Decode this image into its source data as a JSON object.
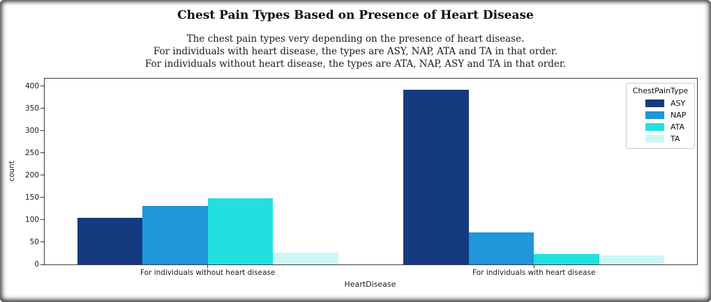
{
  "figure": {
    "title": "Chest Pain Types Based on Presence of Heart Disease",
    "subtitle_lines": [
      "The chest pain types very depending on the presence of heart disease.",
      "For individuals with heart disease, the types are ASY, NAP, ATA and TA in that order.",
      "For individuals without heart disease, the types are ATA, NAP, ASY and TA in that order."
    ]
  },
  "chart_data": {
    "type": "bar",
    "title": "Chest Pain Types Based on Presence of Heart Disease",
    "xlabel": "HeartDisease",
    "ylabel": "count",
    "categories": [
      "For individuals without heart disease",
      "For individuals with heart disease"
    ],
    "series": [
      {
        "name": "ASY",
        "color": "#163A80",
        "values": [
          104,
          392
        ]
      },
      {
        "name": "NAP",
        "color": "#2196D9",
        "values": [
          131,
          72
        ]
      },
      {
        "name": "ATA",
        "color": "#22DFE0",
        "values": [
          149,
          24
        ]
      },
      {
        "name": "TA",
        "color": "#CDF7F6",
        "values": [
          26,
          20
        ]
      }
    ],
    "legend_title": "ChestPainType",
    "legend_position": "upper right",
    "yticks": [
      0,
      50,
      100,
      150,
      200,
      250,
      300,
      350,
      400
    ],
    "ylim": [
      0,
      417
    ],
    "grid": false
  }
}
